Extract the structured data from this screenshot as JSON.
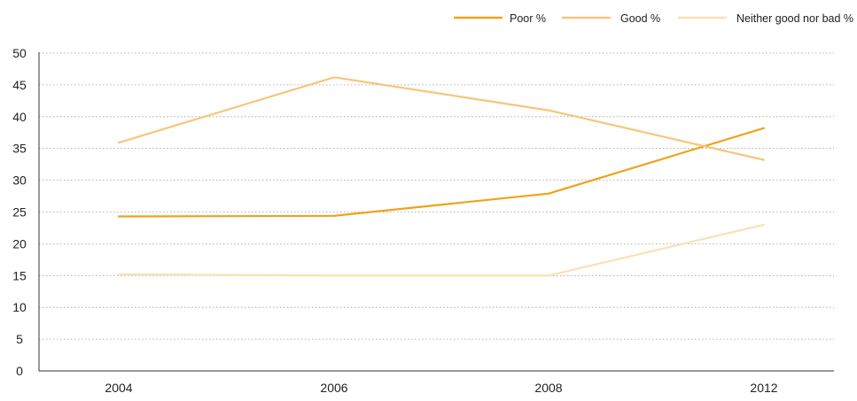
{
  "chart_data": {
    "type": "line",
    "x": [
      "2004",
      "2006",
      "2008",
      "2012"
    ],
    "xlabel": "",
    "ylabel": "",
    "title": "",
    "ylim": [
      0,
      50
    ],
    "yticks": [
      "0",
      "5",
      "10",
      "15",
      "20",
      "25",
      "30",
      "35",
      "40",
      "45",
      "50"
    ],
    "grid": "horizontal-dotted",
    "legend_position": "top-right",
    "series": [
      {
        "name": "Poor %",
        "color": "#F0A21A",
        "values": [
          24.3,
          24.4,
          27.9,
          38.2
        ]
      },
      {
        "name": "Good %",
        "color": "#F7C67A",
        "values": [
          35.9,
          46.2,
          41.0,
          33.2
        ]
      },
      {
        "name": "Neither good nor bad %",
        "color": "#FBE0B4",
        "values": [
          15.2,
          15.0,
          15.0,
          23.0
        ]
      }
    ]
  }
}
